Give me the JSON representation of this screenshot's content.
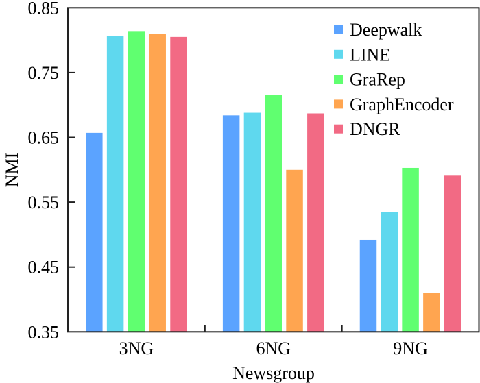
{
  "chart_data": {
    "type": "bar",
    "title": "",
    "xlabel": "Newsgroup",
    "ylabel": "NMI",
    "ylim": [
      0.35,
      0.85
    ],
    "yticks": [
      "0.35",
      "0.45",
      "0.55",
      "0.65",
      "0.75",
      "0.85"
    ],
    "ytick_values": [
      0.35,
      0.45,
      0.55,
      0.65,
      0.75,
      0.85
    ],
    "categories": [
      "3NG",
      "6NG",
      "9NG"
    ],
    "grid": false,
    "legend_position": "top-right",
    "series": [
      {
        "name": "Deepwalk",
        "color": "#5ba3ff",
        "values": [
          0.657,
          0.684,
          0.492
        ]
      },
      {
        "name": "LINE",
        "color": "#5fd8ee",
        "values": [
          0.806,
          0.688,
          0.535
        ]
      },
      {
        "name": "GraRep",
        "color": "#60ff70",
        "values": [
          0.814,
          0.715,
          0.603
        ]
      },
      {
        "name": "GraphEncoder",
        "color": "#ffa550",
        "values": [
          0.81,
          0.6,
          0.41
        ]
      },
      {
        "name": "DNGR",
        "color": "#f26a84",
        "values": [
          0.805,
          0.687,
          0.591
        ]
      }
    ]
  }
}
